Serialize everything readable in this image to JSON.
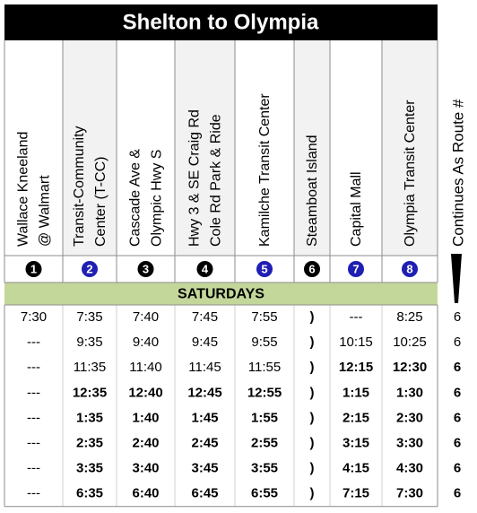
{
  "header": {
    "title": "Shelton to Olympia",
    "continues": "Continues  As  Route  #"
  },
  "stops": [
    {
      "lines": [
        "Wallace Kneeland",
        "@ Walmart"
      ],
      "number": "1",
      "color": "#000000"
    },
    {
      "lines": [
        "Transit-Community",
        "Center (T-CC)"
      ],
      "number": "2",
      "color": "#1f1fb4"
    },
    {
      "lines": [
        "Cascade Ave &",
        "Olympic Hwy S"
      ],
      "number": "3",
      "color": "#000000"
    },
    {
      "lines": [
        "Hwy 3 & SE Craig Rd",
        "Cole Rd Park & Ride"
      ],
      "number": "4",
      "color": "#000000"
    },
    {
      "lines": [
        "Kamilche Transit Center"
      ],
      "number": "5",
      "color": "#1f1fb4"
    },
    {
      "lines": [
        "Steamboat  Island"
      ],
      "number": "6",
      "color": "#000000"
    },
    {
      "lines": [
        "Capital Mall"
      ],
      "number": "7",
      "color": "#1f1fb4"
    },
    {
      "lines": [
        "Olympia Transit Center"
      ],
      "number": "8",
      "color": "#1f1fb4"
    }
  ],
  "section": "SATURDAYS",
  "table": {
    "rows": [
      [
        "7:30",
        "7:35",
        "7:40",
        "7:45",
        "7:55",
        ")",
        "---",
        "8:25",
        "6"
      ],
      [
        "---",
        "9:35",
        "9:40",
        "9:45",
        "9:55",
        ")",
        "10:15",
        "10:25",
        "6"
      ],
      [
        "---",
        "11:35",
        "11:40",
        "11:45",
        "11:55",
        ")",
        "12:15",
        "12:30",
        "6"
      ],
      [
        "---",
        "12:35",
        "12:40",
        "12:45",
        "12:55",
        ")",
        "1:15",
        "1:30",
        "6"
      ],
      [
        "---",
        "1:35",
        "1:40",
        "1:45",
        "1:55",
        ")",
        "2:15",
        "2:30",
        "6"
      ],
      [
        "---",
        "2:35",
        "2:40",
        "2:45",
        "2:55",
        ")",
        "3:15",
        "3:30",
        "6"
      ],
      [
        "---",
        "3:35",
        "3:40",
        "3:45",
        "3:55",
        ")",
        "4:15",
        "4:30",
        "6"
      ],
      [
        "---",
        "6:35",
        "6:40",
        "6:45",
        "6:55",
        ")",
        "7:15",
        "7:30",
        "6"
      ]
    ],
    "bold": [
      [
        false,
        false,
        false,
        false,
        false,
        true,
        false,
        false,
        false
      ],
      [
        false,
        false,
        false,
        false,
        false,
        true,
        false,
        false,
        false
      ],
      [
        false,
        false,
        false,
        false,
        false,
        true,
        true,
        true,
        true
      ],
      [
        false,
        true,
        true,
        true,
        true,
        true,
        true,
        true,
        true
      ],
      [
        false,
        true,
        true,
        true,
        true,
        true,
        true,
        true,
        true
      ],
      [
        false,
        true,
        true,
        true,
        true,
        true,
        true,
        true,
        true
      ],
      [
        false,
        true,
        true,
        true,
        true,
        true,
        true,
        true,
        true
      ],
      [
        false,
        true,
        true,
        true,
        true,
        true,
        true,
        true,
        true
      ]
    ]
  }
}
